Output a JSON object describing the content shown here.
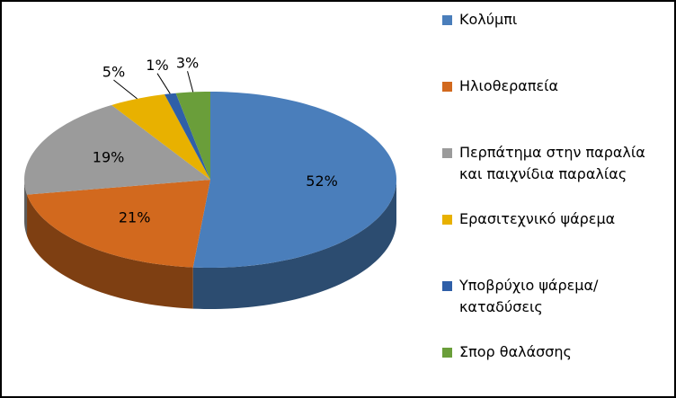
{
  "chart_data": {
    "type": "pie3d",
    "categories": [
      "Κολύμπι",
      "Ηλιοθεραπεία",
      "Περπάτημα στην παραλία και παιχνίδια παραλίας",
      "Ερασιτεχνικό ψάρεμα",
      "Υποβρύχιο ψάρεμα/καταδύσεις",
      "Σπορ θαλάσσης"
    ],
    "values": [
      52,
      21,
      19,
      5,
      1,
      3
    ],
    "value_labels": [
      "52%",
      "21%",
      "19%",
      "5%",
      "1%",
      "3%"
    ],
    "colors": [
      "#4a7ebb",
      "#d2691e",
      "#9b9b9b",
      "#e8b100",
      "#2f5fa8",
      "#6a9e3a"
    ],
    "legend": "right"
  }
}
